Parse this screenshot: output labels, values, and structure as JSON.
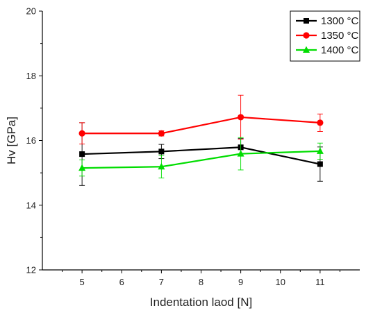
{
  "chart_data": {
    "type": "line",
    "title": "",
    "xlabel": "Indentation laod [N]",
    "ylabel": "Hv [GPa]",
    "xlim": [
      4.0,
      12.0
    ],
    "ylim": [
      12,
      20
    ],
    "x_ticks": [
      5,
      6,
      7,
      8,
      9,
      10,
      11
    ],
    "y_ticks": [
      12,
      14,
      16,
      18,
      20
    ],
    "x": [
      5,
      7,
      9,
      11
    ],
    "legend_position": "top-right",
    "grid": false,
    "series": [
      {
        "name": "1300 °C",
        "color": "#000000",
        "marker": "square",
        "values": [
          15.58,
          15.66,
          15.79,
          15.27
        ],
        "errors": [
          0.97,
          0.22,
          0.27,
          0.53
        ]
      },
      {
        "name": "1350 °C",
        "color": "#ff0000",
        "marker": "circle",
        "values": [
          16.22,
          16.22,
          16.72,
          16.55
        ],
        "errors": [
          0.33,
          0.08,
          0.68,
          0.27
        ]
      },
      {
        "name": "1400 °C",
        "color": "#00dd00",
        "marker": "triangle",
        "values": [
          15.15,
          15.19,
          15.59,
          15.67
        ],
        "errors": [
          0.25,
          0.35,
          0.5,
          0.25
        ]
      }
    ]
  }
}
